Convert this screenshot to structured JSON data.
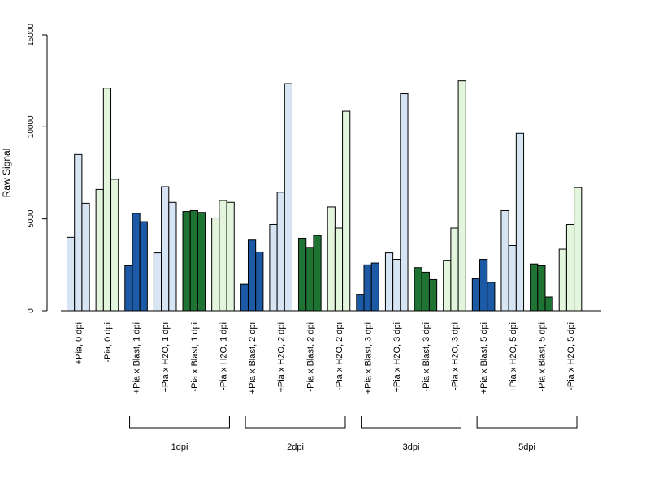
{
  "chart_data": {
    "type": "bar",
    "ylabel": "Raw Signal",
    "xlabel": "",
    "ylim": [
      0,
      15000
    ],
    "yticks": [
      0,
      5000,
      10000,
      15000
    ],
    "colors": {
      "light_blue": "#d6e4f4",
      "dark_blue": "#1c5aa5",
      "dark_green": "#1f7333",
      "light_green": "#e3f5dc"
    },
    "categories": [
      {
        "label": "+Pia, 0 dpi",
        "color": "light_blue",
        "values": [
          4000,
          8500,
          5850
        ]
      },
      {
        "label": "-Pia, 0 dpi",
        "color": "light_green",
        "values": [
          6600,
          12100,
          7150
        ]
      },
      {
        "label": "+Pia x Blast, 1 dpi",
        "color": "dark_blue",
        "values": [
          2450,
          5300,
          4850
        ]
      },
      {
        "label": "+Pia x H2O, 1 dpi",
        "color": "light_blue",
        "values": [
          3150,
          6750,
          5900
        ]
      },
      {
        "label": "-Pia x Blast, 1 dpi",
        "color": "dark_green",
        "values": [
          5400,
          5450,
          5350
        ]
      },
      {
        "label": "-Pia x H2O, 1 dpi",
        "color": "light_green",
        "values": [
          5050,
          6000,
          5900
        ]
      },
      {
        "label": "+Pia x Blast, 2 dpi",
        "color": "dark_blue",
        "values": [
          1450,
          3850,
          3200
        ]
      },
      {
        "label": "+Pia x H2O, 2 dpi",
        "color": "light_blue",
        "values": [
          4700,
          6450,
          12350
        ]
      },
      {
        "label": "-Pia x Blast, 2 dpi",
        "color": "dark_green",
        "values": [
          3950,
          3450,
          4100
        ]
      },
      {
        "label": "-Pia x H2O, 2 dpi",
        "color": "light_green",
        "values": [
          5650,
          4500,
          10850
        ]
      },
      {
        "label": "+Pia x Blast, 3 dpi",
        "color": "dark_blue",
        "values": [
          900,
          2500,
          2600
        ]
      },
      {
        "label": "+Pia x H2O, 3 dpi",
        "color": "light_blue",
        "values": [
          3150,
          2800,
          11800
        ]
      },
      {
        "label": "-Pia x Blast, 3 dpi",
        "color": "dark_green",
        "values": [
          2350,
          2100,
          1700
        ]
      },
      {
        "label": "-Pia x H2O, 3 dpi",
        "color": "light_green",
        "values": [
          2750,
          4500,
          12500
        ]
      },
      {
        "label": "+Pia x Blast, 5 dpi",
        "color": "dark_blue",
        "values": [
          1750,
          2800,
          1550
        ]
      },
      {
        "label": "+Pia x H2O, 5 dpi",
        "color": "light_blue",
        "values": [
          5450,
          3550,
          9650
        ]
      },
      {
        "label": "-Pia x Blast, 5 dpi",
        "color": "dark_green",
        "values": [
          2550,
          2450,
          750
        ]
      },
      {
        "label": "-Pia x H2O, 5 dpi",
        "color": "light_green",
        "values": [
          3350,
          4700,
          6700
        ]
      }
    ],
    "groups": [
      {
        "label": "1dpi",
        "start": 2,
        "end": 5
      },
      {
        "label": "2dpi",
        "start": 6,
        "end": 9
      },
      {
        "label": "3dpi",
        "start": 10,
        "end": 13
      },
      {
        "label": "5dpi",
        "start": 14,
        "end": 17
      }
    ]
  }
}
